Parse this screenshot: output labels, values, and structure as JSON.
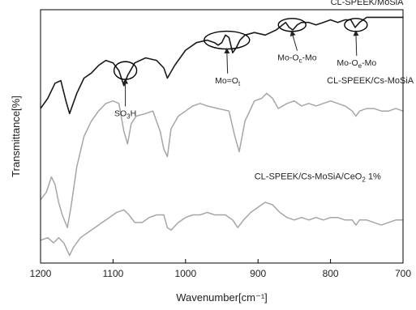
{
  "chart_data": {
    "type": "line",
    "xlabel": "Wavenumber[cm⁻¹]",
    "ylabel": "Transmittance[%]",
    "x_reversed": true,
    "xlim": [
      1200,
      700
    ],
    "ylim": [
      0,
      100
    ],
    "y_ticks_shown": false,
    "grid": false,
    "x_ticks": [
      1200,
      1100,
      1000,
      900,
      800,
      700
    ],
    "series": [
      {
        "name": "CL-SPEEK/MoSiA",
        "color": "#1a1a1a",
        "x": [
          1200,
          1190,
          1180,
          1172,
          1165,
          1160,
          1150,
          1140,
          1130,
          1120,
          1110,
          1100,
          1092,
          1085,
          1080,
          1070,
          1055,
          1040,
          1030,
          1025,
          1015,
          1000,
          985,
          970,
          960,
          955,
          950,
          945,
          940,
          935,
          930,
          925,
          918,
          905,
          890,
          875,
          862,
          857,
          852,
          846,
          840,
          830,
          820,
          810,
          800,
          790,
          780,
          772,
          766,
          760,
          750,
          740,
          730,
          720,
          710,
          700
        ],
        "y": [
          61,
          65,
          71,
          72,
          64,
          59,
          67,
          73,
          75,
          78,
          80,
          79,
          76,
          70,
          74,
          79,
          81,
          80,
          77,
          73,
          78,
          84,
          87,
          88,
          87,
          86,
          87,
          90,
          89,
          83,
          85,
          88,
          90,
          91,
          90,
          92,
          95,
          93,
          92,
          94,
          95,
          95,
          94,
          95,
          96,
          95,
          96,
          96,
          93,
          95,
          97,
          97,
          97,
          97,
          97,
          97
        ]
      },
      {
        "name": "CL-SPEEK/Cs-MoSiA",
        "color": "#a6a6a6",
        "x": [
          1200,
          1192,
          1185,
          1180,
          1175,
          1170,
          1163,
          1158,
          1150,
          1140,
          1130,
          1120,
          1110,
          1100,
          1092,
          1085,
          1080,
          1075,
          1068,
          1055,
          1045,
          1035,
          1030,
          1025,
          1020,
          1010,
          1000,
          990,
          980,
          970,
          955,
          940,
          932,
          926,
          918,
          905,
          895,
          888,
          880,
          872,
          860,
          850,
          840,
          830,
          820,
          810,
          800,
          790,
          780,
          770,
          765,
          760,
          750,
          740,
          730,
          720,
          710,
          700
        ],
        "y": [
          25,
          28,
          34,
          31,
          24,
          19,
          14,
          22,
          38,
          50,
          56,
          60,
          63,
          64,
          63,
          52,
          47,
          55,
          58,
          59,
          60,
          52,
          45,
          42,
          53,
          58,
          60,
          62,
          63,
          62,
          61,
          60,
          50,
          44,
          56,
          64,
          65,
          67,
          65,
          61,
          63,
          64,
          62,
          63,
          62,
          63,
          64,
          63,
          62,
          60,
          58,
          60,
          61,
          61,
          60,
          60,
          61,
          60
        ]
      },
      {
        "name": "CL-SPEEK/Cs-MoSiA/CeO₂ 1%",
        "color": "#a6a6a6",
        "x": [
          1200,
          1190,
          1182,
          1175,
          1168,
          1160,
          1155,
          1145,
          1135,
          1125,
          1115,
          1105,
          1095,
          1085,
          1078,
          1070,
          1060,
          1050,
          1040,
          1030,
          1025,
          1020,
          1010,
          1000,
          990,
          980,
          970,
          960,
          945,
          935,
          928,
          920,
          910,
          900,
          890,
          880,
          870,
          860,
          850,
          840,
          830,
          820,
          810,
          800,
          790,
          780,
          770,
          765,
          760,
          750,
          740,
          730,
          720,
          710,
          700
        ],
        "y": [
          9,
          10,
          8,
          10,
          8,
          3,
          6,
          10,
          12,
          14,
          16,
          18,
          20,
          21,
          19,
          16,
          16,
          18,
          19,
          19,
          14,
          13,
          16,
          18,
          19,
          19,
          20,
          19,
          19,
          17,
          14,
          17,
          20,
          22,
          24,
          23,
          20,
          18,
          17,
          18,
          17,
          18,
          17,
          18,
          18,
          17,
          17,
          15,
          17,
          17,
          16,
          15,
          16,
          17,
          17
        ]
      }
    ],
    "series_labels": [
      {
        "text": "CL-SPEEK/MoSiA",
        "x": 800,
        "y": 102
      },
      {
        "text": "CL-SPEEK/Cs-MoSiA",
        "x": 805,
        "y": 71
      },
      {
        "text": "CL-SPEEK/Cs-MoSiA/CeO",
        "subscript": "2",
        "suffix": " 1%",
        "x": 905,
        "y": 33
      }
    ],
    "annotations": [
      {
        "text": "SO",
        "subscript": "3",
        "suffix": "H",
        "cx": 1083,
        "cy": 76,
        "rx": 14,
        "ry": 11,
        "label_x": 1083,
        "label_y": 58
      },
      {
        "text": "Mo=O",
        "subscript": "t",
        "suffix": "",
        "cx": 943,
        "cy": 88,
        "rx": 28,
        "ry": 11,
        "label_x": 942,
        "label_y": 71
      },
      {
        "text": "Mo-O",
        "subscript": "c",
        "suffix": "-Mo",
        "cx": 853,
        "cy": 94,
        "rx": 17,
        "ry": 8,
        "label_x": 846,
        "label_y": 80
      },
      {
        "text": "Mo-O",
        "subscript": "e",
        "suffix": "-Mo",
        "cx": 765,
        "cy": 94,
        "rx": 14,
        "ry": 8,
        "label_x": 764,
        "label_y": 78
      }
    ]
  }
}
